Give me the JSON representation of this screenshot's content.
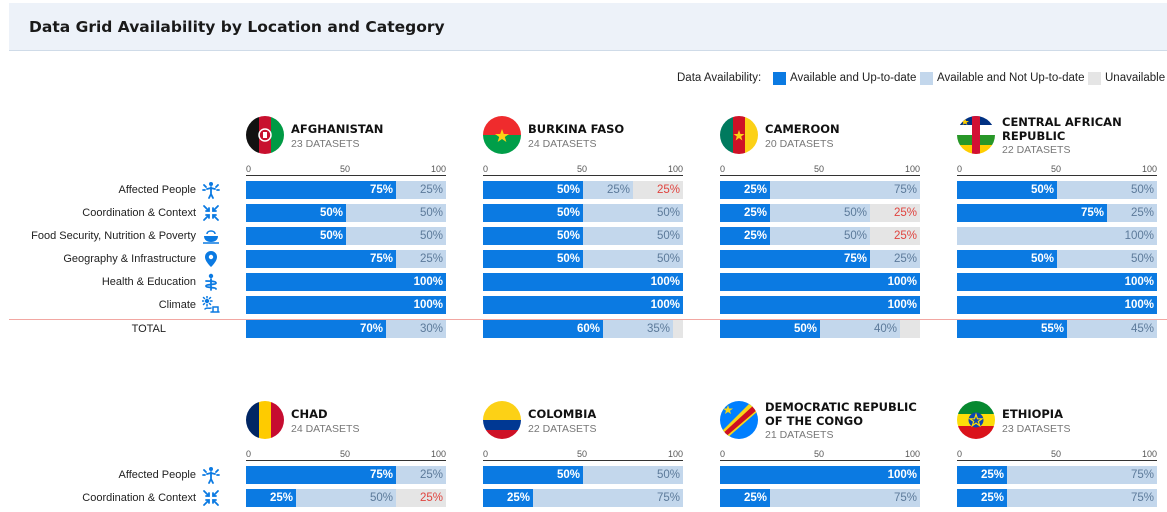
{
  "title": "Data Grid Availability by Location and Category",
  "legend": {
    "label": "Data Availability:",
    "items": [
      {
        "key": "up",
        "label": "Available and Up-to-date",
        "color": "#0b7ae2"
      },
      {
        "key": "nu",
        "label": "Available and Not Up-to-date",
        "color": "#c3d7ec"
      },
      {
        "key": "ua",
        "label": "Unavailable",
        "color": "#e5e5e5"
      }
    ]
  },
  "chart_data": {
    "type": "bar",
    "subtype": "stacked-horizontal-percent",
    "xlim": [
      0,
      100
    ],
    "ticks": [
      0,
      50,
      100
    ],
    "categories": [
      "Affected People",
      "Coordination & Context",
      "Food Security, Nutrition & Poverty",
      "Geography & Infrastructure",
      "Health & Education",
      "Climate",
      "TOTAL"
    ],
    "category_icons": [
      "person-icon",
      "arrows-inward-icon",
      "food-bowl-icon",
      "location-pin-icon",
      "health-icon",
      "climate-icon",
      ""
    ],
    "series_names": [
      "Available and Up-to-date",
      "Available and Not Up-to-date",
      "Unavailable"
    ],
    "countries": [
      {
        "name": "AFGHANISTAN",
        "datasets": "23 DATASETS",
        "rows": [
          [
            75,
            25,
            0
          ],
          [
            50,
            50,
            0
          ],
          [
            50,
            50,
            0
          ],
          [
            75,
            25,
            0
          ],
          [
            100,
            0,
            0
          ],
          [
            100,
            0,
            0
          ],
          [
            70,
            30,
            0
          ]
        ]
      },
      {
        "name": "BURKINA FASO",
        "datasets": "24 DATASETS",
        "rows": [
          [
            50,
            25,
            25
          ],
          [
            50,
            50,
            0
          ],
          [
            50,
            50,
            0
          ],
          [
            50,
            50,
            0
          ],
          [
            100,
            0,
            0
          ],
          [
            100,
            0,
            0
          ],
          [
            60,
            35,
            5
          ]
        ]
      },
      {
        "name": "CAMEROON",
        "datasets": "20 DATASETS",
        "rows": [
          [
            25,
            75,
            0
          ],
          [
            25,
            50,
            25
          ],
          [
            25,
            50,
            25
          ],
          [
            75,
            25,
            0
          ],
          [
            100,
            0,
            0
          ],
          [
            100,
            0,
            0
          ],
          [
            50,
            40,
            10
          ]
        ]
      },
      {
        "name": "CENTRAL AFRICAN REPUBLIC",
        "datasets": "22 DATASETS",
        "rows": [
          [
            50,
            50,
            0
          ],
          [
            75,
            25,
            0
          ],
          [
            0,
            100,
            0
          ],
          [
            50,
            50,
            0
          ],
          [
            100,
            0,
            0
          ],
          [
            100,
            0,
            0
          ],
          [
            55,
            45,
            0
          ]
        ]
      },
      {
        "name": "CHAD",
        "datasets": "24 DATASETS",
        "rows": [
          [
            75,
            25,
            0
          ],
          [
            25,
            50,
            25
          ]
        ]
      },
      {
        "name": "COLOMBIA",
        "datasets": "22 DATASETS",
        "rows": [
          [
            50,
            50,
            0
          ],
          [
            25,
            75,
            0
          ]
        ]
      },
      {
        "name": "DEMOCRATIC REPUBLIC OF THE CONGO",
        "datasets": "21 DATASETS",
        "rows": [
          [
            100,
            0,
            0
          ],
          [
            25,
            75,
            0
          ]
        ]
      },
      {
        "name": "ETHIOPIA",
        "datasets": "23 DATASETS",
        "rows": [
          [
            25,
            75,
            0
          ],
          [
            25,
            75,
            0
          ]
        ]
      }
    ]
  }
}
